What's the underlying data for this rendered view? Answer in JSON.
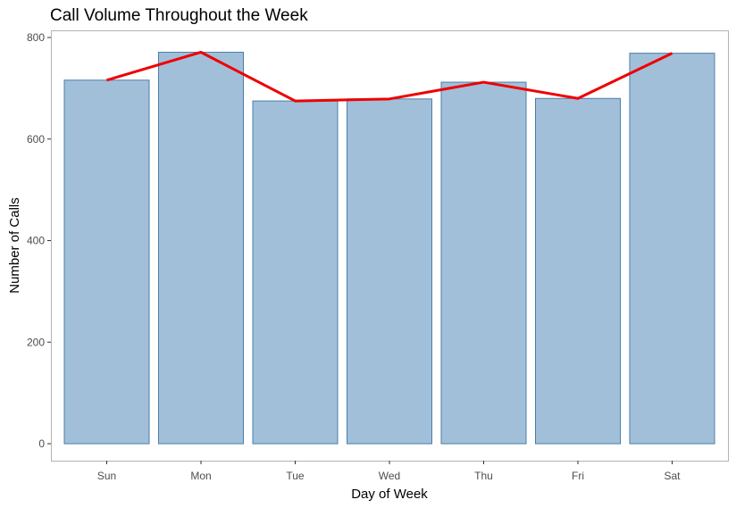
{
  "chart_data": {
    "type": "bar",
    "title": "Call Volume Throughout the Week",
    "xlabel": "Day of Week",
    "ylabel": "Number of Calls",
    "categories": [
      "Sun",
      "Mon",
      "Tue",
      "Wed",
      "Thu",
      "Fri",
      "Sat"
    ],
    "values": [
      716,
      771,
      675,
      679,
      712,
      680,
      769
    ],
    "overlay_line": {
      "type": "line",
      "values": [
        716,
        771,
        675,
        679,
        712,
        680,
        769
      ],
      "color": "#ee0000"
    },
    "ylim": [
      0,
      800
    ],
    "yticks": [
      0,
      200,
      400,
      600,
      800
    ],
    "grid": false,
    "bar_fill": "#a2bfd9",
    "bar_stroke": "#4a7fa8",
    "panel_border": "#b3b3b3"
  }
}
